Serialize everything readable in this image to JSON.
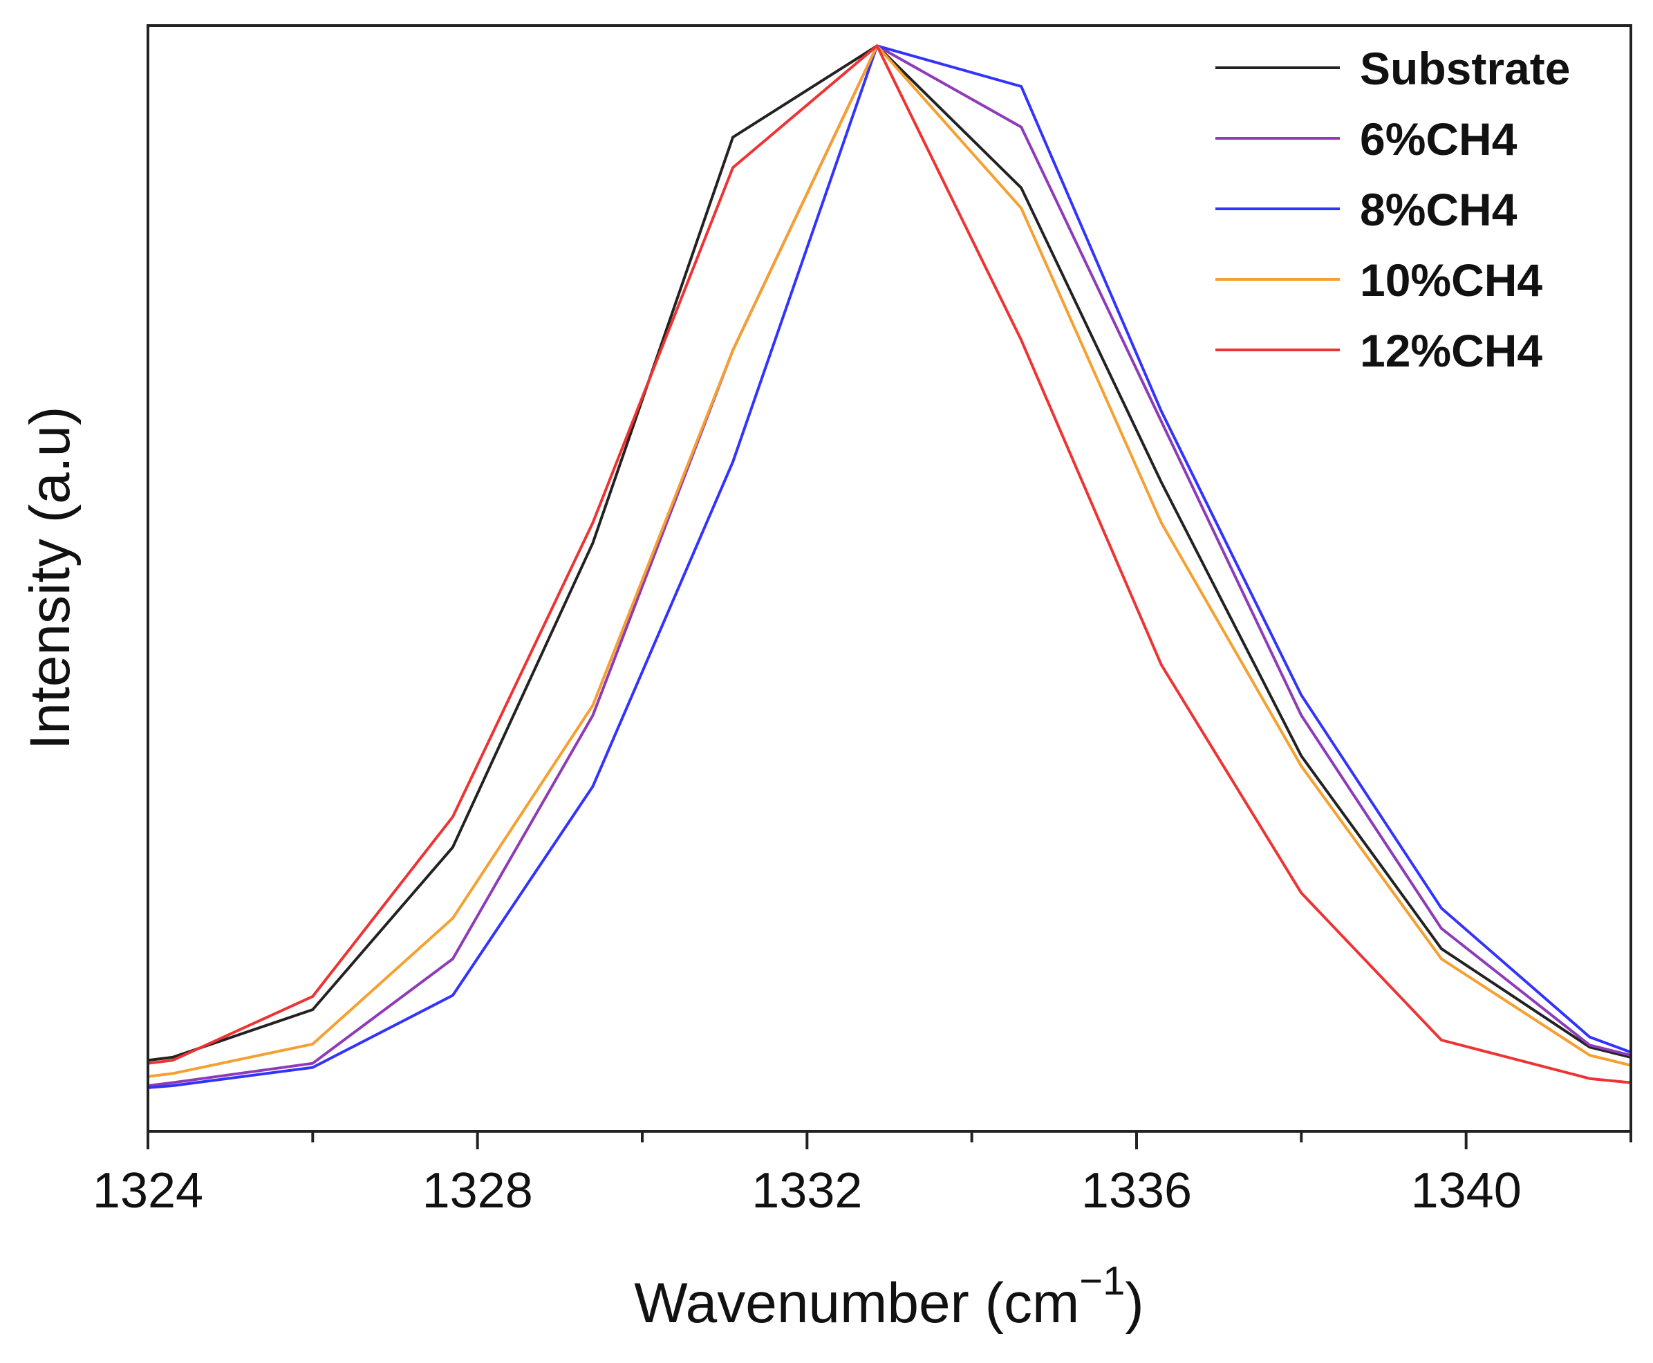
{
  "chart_data": {
    "type": "line",
    "title": "",
    "xlabel": "Wavenumber (cm",
    "xlabel_superscript": "−1",
    "xlabel_close": ")",
    "ylabel": "Intensity (a.u)",
    "xlim": [
      1324,
      1342
    ],
    "ylim": [
      -0.07,
      1.02
    ],
    "x_ticks": [
      1324,
      1328,
      1332,
      1336,
      1340
    ],
    "x_minor_ticks": [
      1326,
      1330,
      1334,
      1338,
      1342
    ],
    "y_ticks_shown": false,
    "grid": false,
    "legend_position": "top-right",
    "x": [
      1324.0,
      1324.3,
      1326.0,
      1327.7,
      1329.4,
      1331.1,
      1332.85,
      1334.6,
      1336.3,
      1338.0,
      1339.7,
      1341.5,
      1342.0
    ],
    "series": [
      {
        "name": "Substrate",
        "color": "#222222",
        "values": [
          0.0,
          0.003,
          0.05,
          0.21,
          0.51,
          0.91,
          1.0,
          0.86,
          0.57,
          0.3,
          0.11,
          0.013,
          0.003
        ]
      },
      {
        "name": "6%CH4",
        "color": "#8e3bb8",
        "values": [
          -0.025,
          -0.022,
          -0.003,
          0.1,
          0.34,
          0.7,
          1.0,
          0.92,
          0.63,
          0.34,
          0.13,
          0.015,
          0.005
        ]
      },
      {
        "name": "8%CH4",
        "color": "#3333ff",
        "values": [
          -0.027,
          -0.025,
          -0.007,
          0.064,
          0.27,
          0.59,
          1.0,
          0.96,
          0.64,
          0.36,
          0.15,
          0.023,
          0.008
        ]
      },
      {
        "name": "10%CH4",
        "color": "#f5a030",
        "values": [
          -0.016,
          -0.013,
          0.016,
          0.14,
          0.35,
          0.7,
          1.0,
          0.84,
          0.53,
          0.29,
          0.1,
          0.005,
          -0.005
        ]
      },
      {
        "name": "12%CH4",
        "color": "#ee3333",
        "values": [
          -0.003,
          0.0,
          0.063,
          0.24,
          0.53,
          0.88,
          1.0,
          0.71,
          0.39,
          0.165,
          0.02,
          -0.018,
          -0.022
        ]
      }
    ]
  }
}
